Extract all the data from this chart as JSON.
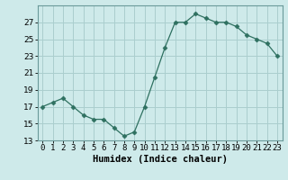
{
  "x": [
    0,
    1,
    2,
    3,
    4,
    5,
    6,
    7,
    8,
    9,
    10,
    11,
    12,
    13,
    14,
    15,
    16,
    17,
    18,
    19,
    20,
    21,
    22,
    23
  ],
  "y": [
    17.0,
    17.5,
    18.0,
    17.0,
    16.0,
    15.5,
    15.5,
    14.5,
    13.5,
    14.0,
    17.0,
    20.5,
    24.0,
    27.0,
    27.0,
    28.0,
    27.5,
    27.0,
    27.0,
    26.5,
    25.5,
    25.0,
    24.5,
    23.0
  ],
  "line_color": "#2e7060",
  "marker": "D",
  "marker_size": 2.5,
  "bg_color": "#ceeaea",
  "grid_color": "#aacece",
  "xlabel": "Humidex (Indice chaleur)",
  "ylim": [
    13,
    29
  ],
  "xlim": [
    -0.5,
    23.5
  ],
  "yticks": [
    13,
    15,
    17,
    19,
    21,
    23,
    25,
    27
  ],
  "xtick_labels": [
    "0",
    "1",
    "2",
    "3",
    "4",
    "5",
    "6",
    "7",
    "8",
    "9",
    "10",
    "11",
    "12",
    "13",
    "14",
    "15",
    "16",
    "17",
    "18",
    "19",
    "20",
    "21",
    "22",
    "23"
  ],
  "tick_fontsize": 6.5,
  "xlabel_fontsize": 7.5
}
